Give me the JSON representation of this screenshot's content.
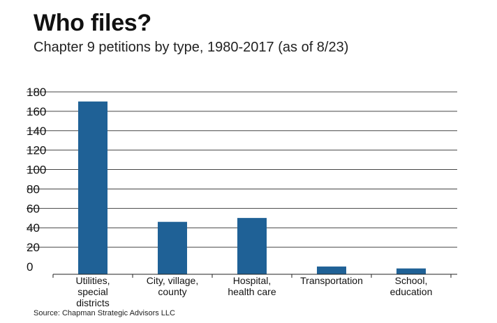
{
  "chart_data": {
    "type": "bar",
    "title": "Who files?",
    "subtitle": "Chapter 9 petitions by type, 1980-2017 (as of 8/23)",
    "source": "Source: Chapman Strategic Advisors LLC",
    "categories": [
      [
        "Utilities,",
        "special",
        "districts"
      ],
      [
        "City, village,",
        "county"
      ],
      [
        "Hospital,",
        "health care"
      ],
      [
        "Transportation"
      ],
      [
        "School,",
        "education"
      ]
    ],
    "values": [
      178,
      54,
      58,
      8,
      6
    ],
    "yticks": [
      0,
      20,
      40,
      60,
      80,
      100,
      120,
      140,
      160,
      180
    ],
    "ylim": [
      0,
      180
    ],
    "grid": true,
    "colors": {
      "bar": "#1f6196",
      "grid": "#444444",
      "axis": "#222222"
    }
  }
}
